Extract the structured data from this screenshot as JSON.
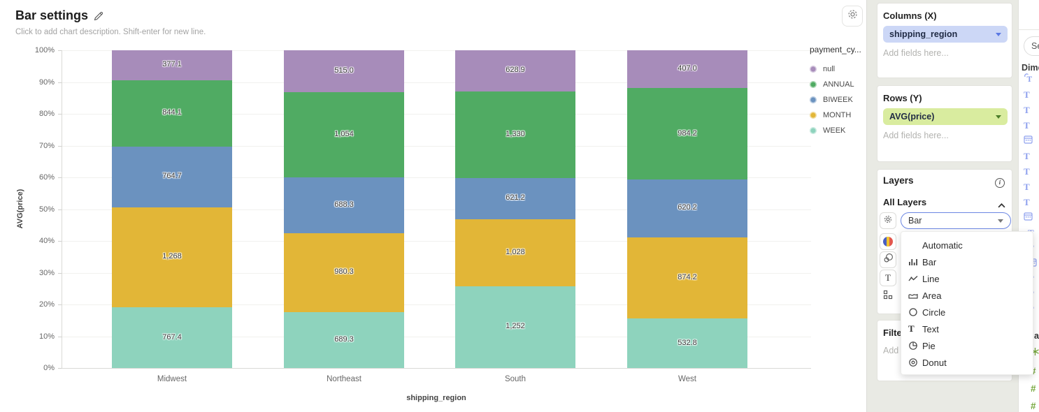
{
  "chart_card": {
    "title": "Bar settings",
    "description_placeholder": "Click to add chart description. Shift-enter for new line."
  },
  "chart_data": {
    "type": "bar",
    "stacked": "percent",
    "title": "Bar settings",
    "categories": [
      "Midwest",
      "Northeast",
      "South",
      "West"
    ],
    "series": [
      {
        "name": "null",
        "color": "#a78cba",
        "values": [
          377.1,
          515.0,
          628.9,
          407.0
        ],
        "labels": [
          "377.1",
          "515.0",
          "628.9",
          "407.0"
        ]
      },
      {
        "name": "ANNUAL",
        "color": "#50ab63",
        "values": [
          844.1,
          1054,
          1330,
          984.2
        ],
        "labels": [
          "844.1",
          "1,054",
          "1,330",
          "984.2"
        ]
      },
      {
        "name": "BIWEEK",
        "color": "#6b92bf",
        "values": [
          764.7,
          688.3,
          621.2,
          620.2
        ],
        "labels": [
          "764.7",
          "688.3",
          "621.2",
          "620.2"
        ]
      },
      {
        "name": "MONTH",
        "color": "#e2b637",
        "values": [
          1268,
          980.3,
          1028,
          874.2
        ],
        "labels": [
          "1,268",
          "980.3",
          "1,028",
          "874.2"
        ]
      },
      {
        "name": "WEEK",
        "color": "#8ed3bd",
        "values": [
          767.4,
          689.3,
          1252,
          532.8
        ],
        "labels": [
          "767.4",
          "689.3",
          "1,252",
          "532.8"
        ]
      }
    ],
    "stack_order_top_to_bottom": [
      "null",
      "ANNUAL",
      "BIWEEK",
      "MONTH",
      "WEEK"
    ],
    "xlabel": "shipping_region",
    "ylabel": "AVG(price)",
    "y_ticks": [
      "0%",
      "10%",
      "20%",
      "30%",
      "40%",
      "50%",
      "60%",
      "70%",
      "80%",
      "90%",
      "100%"
    ],
    "ylim": [
      0,
      1
    ],
    "grid": true,
    "legend_title": "payment_cy...",
    "legend_position": "right"
  },
  "panel": {
    "columns": {
      "header": "Columns (X)",
      "pill": "shipping_region",
      "placeholder": "Add fields here...",
      "pill_bg": "#ccd7f6",
      "caret_color": "#5b79e3"
    },
    "rows": {
      "header": "Rows (Y)",
      "pill": "AVG(price)",
      "placeholder": "Add fields here...",
      "pill_bg": "#d9ec9f",
      "caret_color": "#4a7d28"
    },
    "layers": {
      "header": "Layers",
      "all_layers_label": "All Layers",
      "mark_type_value": "Bar",
      "icon_buttons": [
        "gear-icon",
        "color-palette-icon",
        "bubbles-icon",
        "text-style-icon",
        "org-grid-icon"
      ]
    },
    "filters": {
      "header": "Filters",
      "placeholder": "Add fields here..."
    },
    "mark_menu_items": [
      {
        "label": "Automatic",
        "icon": ""
      },
      {
        "label": "Bar",
        "icon": "bar-chart-icon"
      },
      {
        "label": "Line",
        "icon": "line-chart-icon"
      },
      {
        "label": "Area",
        "icon": "area-chart-icon"
      },
      {
        "label": "Circle",
        "icon": "circle-mark-icon"
      },
      {
        "label": "Text",
        "icon": "text-mark-icon"
      },
      {
        "label": "Pie",
        "icon": "pie-chart-icon"
      },
      {
        "label": "Donut",
        "icon": "donut-chart-icon"
      }
    ]
  },
  "fields_panel": {
    "search_placeholder": "Search",
    "dimensions_label": "Dimensions",
    "section_fragment": "a",
    "visible_field_icons": [
      "special-text-field-icon",
      "text-field-icon",
      "text-field-icon",
      "text-field-icon",
      "date-field-icon",
      "text-field-icon",
      "text-field-icon",
      "text-field-icon",
      "text-field-icon",
      "date-field-icon"
    ],
    "occluded_field_icons": [
      "text-field-icon",
      "text-field-icon",
      "date-field-icon",
      "text-field-icon",
      "text-field-icon",
      "text-field-icon"
    ],
    "measure_field_icons": [
      "green-asterisk-icon",
      "number-field-icon",
      "number-field-icon",
      "number-field-icon"
    ]
  }
}
